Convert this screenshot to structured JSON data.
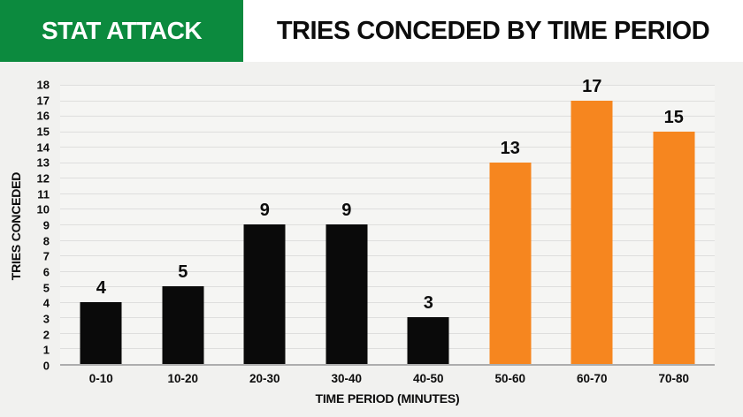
{
  "header": {
    "badge": "STAT ATTACK",
    "title": "TRIES CONCEDED BY TIME PERIOD"
  },
  "colors": {
    "brand_green": "#0C8A3E",
    "bar_black": "#0A0A0A",
    "bar_orange": "#F6861F",
    "region_background": "#F1F1EF",
    "plot_background": "#F5F5F3",
    "gridline": "#DEDEDD",
    "axis_line": "#ADADAD",
    "text": "#0C0C0C"
  },
  "chart_data": {
    "type": "bar",
    "title": "TRIES CONCEDED BY TIME PERIOD",
    "xlabel": "TIME PERIOD (MINUTES)",
    "ylabel": "TRIES CONCEDED",
    "categories": [
      "0-10",
      "10-20",
      "20-30",
      "30-40",
      "40-50",
      "50-60",
      "60-70",
      "70-80"
    ],
    "values": [
      4,
      5,
      9,
      9,
      3,
      13,
      17,
      15
    ],
    "bar_colors": [
      "#0A0A0A",
      "#0A0A0A",
      "#0A0A0A",
      "#0A0A0A",
      "#0A0A0A",
      "#F6861F",
      "#F6861F",
      "#F6861F"
    ],
    "data_labels": [
      4,
      5,
      9,
      9,
      3,
      13,
      17,
      15
    ],
    "ylim": [
      0,
      18
    ],
    "y_ticks": [
      0,
      1,
      2,
      3,
      4,
      5,
      6,
      7,
      8,
      9,
      10,
      11,
      12,
      13,
      14,
      15,
      16,
      17,
      18
    ],
    "grid": "horizontal",
    "legend": "none"
  }
}
